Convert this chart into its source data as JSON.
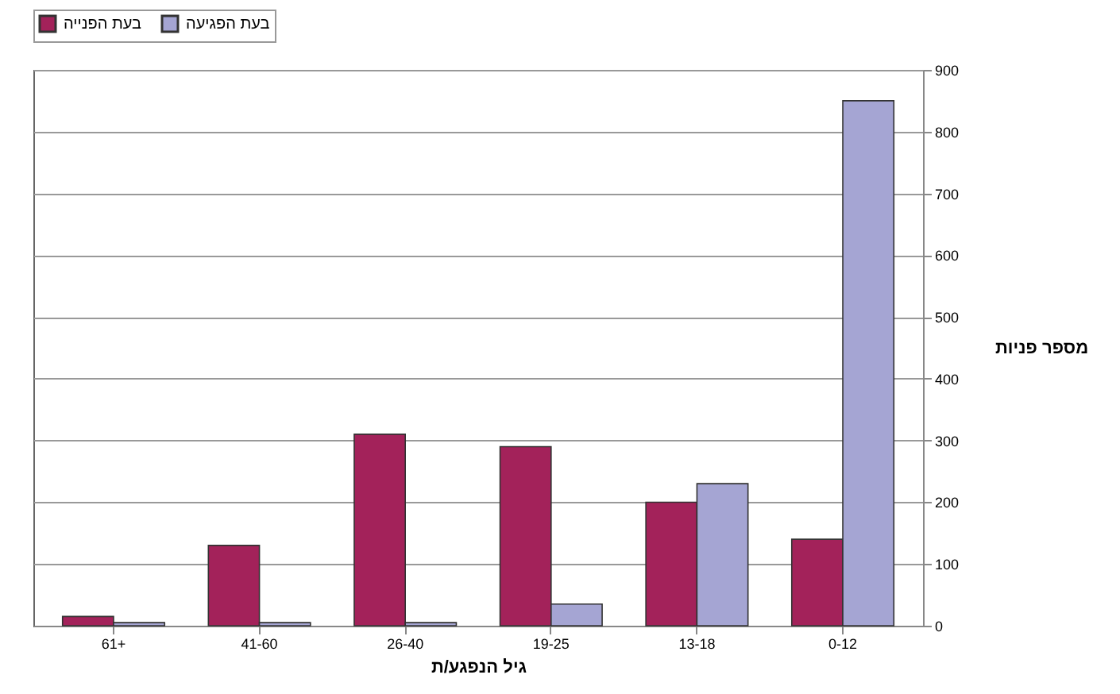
{
  "chart_data": {
    "type": "bar",
    "xlabel": "גיל הנפגע/ת",
    "ylabel": "מספר פניות",
    "categories": [
      "61+",
      "41-60",
      "26-40",
      "19-25",
      "13-18",
      "0-12"
    ],
    "series": [
      {
        "name": "בעת הפנייה",
        "color": "#a3225a",
        "values": [
          15,
          130,
          310,
          290,
          200,
          140
        ]
      },
      {
        "name": "בעת הפגיעה",
        "color": "#a5a5d3",
        "values": [
          5,
          5,
          5,
          35,
          230,
          850
        ]
      }
    ],
    "ylim": [
      0,
      900
    ],
    "yticks": [
      0,
      100,
      200,
      300,
      400,
      500,
      600,
      700,
      800,
      900
    ],
    "grid": "y",
    "legend": "top"
  }
}
